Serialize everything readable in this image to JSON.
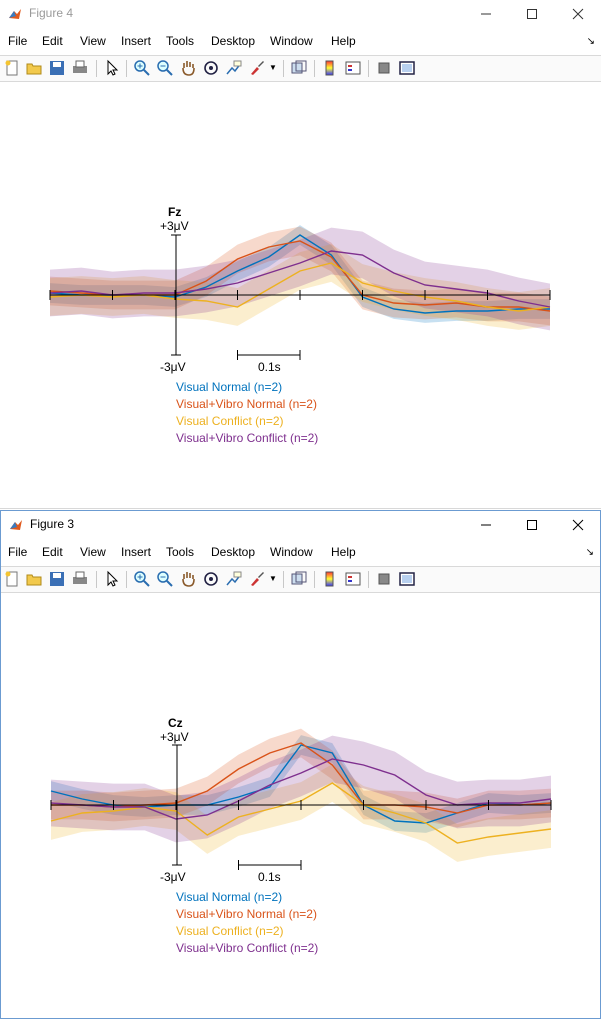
{
  "colors": {
    "visual_normal": "#0072bd",
    "visual_vibro_normal": "#d95319",
    "visual_conflict": "#edb120",
    "visual_vibro_conflict": "#7e2f8e"
  },
  "menus": [
    "File",
    "Edit",
    "View",
    "Insert",
    "Tools",
    "Desktop",
    "Window",
    "Help"
  ],
  "toolbar_icons": [
    "new-figure-icon",
    "open-file-icon",
    "save-icon",
    "print-icon",
    "pointer-icon",
    "zoom-in-icon",
    "zoom-out-icon",
    "pan-icon",
    "rotate-3d-icon",
    "data-cursor-icon",
    "brush-icon",
    "link-plot-icon",
    "colorbar-icon",
    "legend-icon",
    "hide-plot-tools-icon",
    "show-plot-tools-icon"
  ],
  "figure4": {
    "title": "Figure 4",
    "channel_label": "Fz",
    "y_top_label": "+3μV",
    "y_bottom_label": "-3μV",
    "time_scale_label": "0.1s",
    "legend": [
      "Visual Normal (n=2)",
      "Visual+Vibro Normal (n=2)",
      "Visual Conflict (n=2)",
      "Visual+Vibro Conflict (n=2)"
    ]
  },
  "figure3": {
    "title": "Figure 3",
    "channel_label": "Cz",
    "y_top_label": "+3μV",
    "y_bottom_label": "-3μV",
    "time_scale_label": "0.1s",
    "legend": [
      "Visual Normal (n=2)",
      "Visual+Vibro Normal (n=2)",
      "Visual Conflict (n=2)",
      "Visual+Vibro Conflict (n=2)"
    ]
  },
  "chart_data": [
    {
      "type": "line",
      "title": "Fz",
      "xlabel": "",
      "ylabel": "",
      "x": [
        -0.2,
        -0.15,
        -0.1,
        -0.05,
        0.0,
        0.05,
        0.1,
        0.15,
        0.2,
        0.25,
        0.3,
        0.35,
        0.4,
        0.45,
        0.5,
        0.55,
        0.6
      ],
      "ylim": [
        -3,
        3
      ],
      "series": [
        {
          "name": "Visual Normal (n=2)",
          "values": [
            0.1,
            0.0,
            0.0,
            0.0,
            -0.1,
            0.4,
            1.2,
            1.9,
            3.0,
            2.0,
            -0.1,
            -0.7,
            -0.9,
            -0.8,
            -0.8,
            -0.7,
            -0.7
          ]
        },
        {
          "name": "Visual+Vibro Normal (n=2)",
          "values": [
            0.2,
            0.1,
            0.0,
            0.0,
            0.0,
            0.7,
            1.8,
            2.4,
            2.7,
            1.9,
            0.0,
            -0.4,
            -0.5,
            -0.4,
            -0.6,
            -0.6,
            -0.8
          ]
        },
        {
          "name": "Visual Conflict (n=2)",
          "values": [
            -0.1,
            0.0,
            -0.1,
            0.0,
            -0.2,
            -0.3,
            -0.6,
            0.3,
            1.2,
            1.6,
            0.6,
            0.2,
            -0.1,
            -0.3,
            -0.6,
            -0.8,
            -0.6
          ]
        },
        {
          "name": "Visual+Vibro Conflict (n=2)",
          "values": [
            0.1,
            0.2,
            0.0,
            0.1,
            0.1,
            0.3,
            0.6,
            1.1,
            1.6,
            2.2,
            2.0,
            1.1,
            0.5,
            0.3,
            0.1,
            -0.3,
            -0.6
          ]
        }
      ]
    },
    {
      "type": "line",
      "title": "Cz",
      "xlabel": "",
      "ylabel": "",
      "x": [
        -0.2,
        -0.15,
        -0.1,
        -0.05,
        0.0,
        0.05,
        0.1,
        0.15,
        0.2,
        0.25,
        0.3,
        0.35,
        0.4,
        0.45,
        0.5,
        0.55,
        0.6
      ],
      "ylim": [
        -3,
        3
      ],
      "series": [
        {
          "name": "Visual Normal (n=2)",
          "values": [
            0.7,
            0.3,
            0.0,
            -0.1,
            0.0,
            0.0,
            0.4,
            0.9,
            3.0,
            2.6,
            0.0,
            -0.8,
            -0.9,
            -0.4,
            0.1,
            0.0,
            0.1
          ]
        },
        {
          "name": "Visual+Vibro Normal (n=2)",
          "values": [
            0.0,
            0.0,
            -0.1,
            0.0,
            0.1,
            0.7,
            1.8,
            2.6,
            3.1,
            2.0,
            0.0,
            0.0,
            -0.1,
            -0.4,
            0.0,
            0.0,
            0.1
          ]
        },
        {
          "name": "Visual Conflict (n=2)",
          "values": [
            -0.8,
            -0.4,
            -0.3,
            -0.1,
            -0.3,
            -1.5,
            -0.6,
            -0.2,
            0.2,
            1.1,
            0.0,
            -0.4,
            -0.9,
            -1.9,
            -1.6,
            -1.4,
            -1.2
          ]
        },
        {
          "name": "Visual+Vibro Conflict (n=2)",
          "values": [
            0.1,
            0.0,
            -0.1,
            -0.1,
            -0.7,
            -0.5,
            0.2,
            1.0,
            1.6,
            2.3,
            2.0,
            1.5,
            0.5,
            0.0,
            0.1,
            0.1,
            0.3
          ]
        }
      ]
    }
  ]
}
